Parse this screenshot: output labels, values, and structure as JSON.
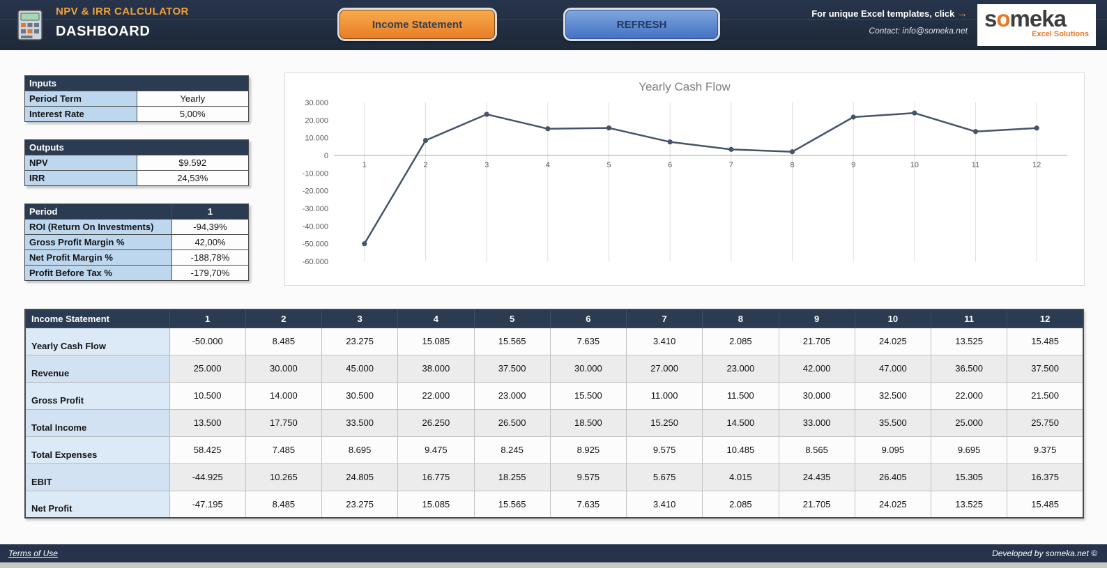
{
  "header": {
    "app_title": "NPV & IRR CALCULATOR",
    "page_title": "DASHBOARD",
    "income_button": "Income Statement",
    "refresh_button": "REFRESH",
    "promo_text": "For unique Excel templates, click",
    "promo_arrow": "→",
    "contact": "Contact: info@someka.net",
    "logo": {
      "pre": "s",
      "o": "o",
      "post": "meka",
      "subtitle": "Excel Solutions"
    }
  },
  "inputs": {
    "title": "Inputs",
    "rows": [
      {
        "label": "Period Term",
        "value": "Yearly"
      },
      {
        "label": "Interest Rate",
        "value": "5,00%"
      }
    ]
  },
  "outputs": {
    "title": "Outputs",
    "rows": [
      {
        "label": "NPV",
        "value": "$9.592"
      },
      {
        "label": "IRR",
        "value": "24,53%"
      }
    ]
  },
  "period": {
    "title": "Period",
    "header_value": "1",
    "rows": [
      {
        "label": "ROI (Return On Investments)",
        "value": "-94,39%"
      },
      {
        "label": "Gross Profit Margin %",
        "value": "42,00%"
      },
      {
        "label": "Net Profit Margin %",
        "value": "-188,78%"
      },
      {
        "label": "Profit Before Tax %",
        "value": "-179,70%"
      }
    ]
  },
  "chart_data": {
    "type": "line",
    "title": "Yearly Cash Flow",
    "x": [
      "1",
      "2",
      "3",
      "4",
      "5",
      "6",
      "7",
      "8",
      "9",
      "10",
      "11",
      "12"
    ],
    "values": [
      -50000,
      8485,
      23275,
      15085,
      15565,
      7635,
      3410,
      2085,
      21705,
      24025,
      13525,
      15485
    ],
    "ylim": [
      -60000,
      30000
    ],
    "ytick_step": 10000,
    "ytick_labels": [
      "30.000",
      "20.000",
      "10.000",
      "0",
      "-10.000",
      "-20.000",
      "-30.000",
      "-40.000",
      "-50.000",
      "-60.000"
    ],
    "grid": "vertical",
    "legend": "none",
    "line_color": "#44546a"
  },
  "income_statement": {
    "title": "Income Statement",
    "columns": [
      "1",
      "2",
      "3",
      "4",
      "5",
      "6",
      "7",
      "8",
      "9",
      "10",
      "11",
      "12"
    ],
    "rows": [
      {
        "label": "Yearly Cash Flow",
        "values": [
          "-50.000",
          "8.485",
          "23.275",
          "15.085",
          "15.565",
          "7.635",
          "3.410",
          "2.085",
          "21.705",
          "24.025",
          "13.525",
          "15.485"
        ]
      },
      {
        "label": "Revenue",
        "values": [
          "25.000",
          "30.000",
          "45.000",
          "38.000",
          "37.500",
          "30.000",
          "27.000",
          "23.000",
          "42.000",
          "47.000",
          "36.500",
          "37.500"
        ]
      },
      {
        "label": "Gross Profit",
        "values": [
          "10.500",
          "14.000",
          "30.500",
          "22.000",
          "23.000",
          "15.500",
          "11.000",
          "11.500",
          "30.000",
          "32.500",
          "22.000",
          "21.500"
        ]
      },
      {
        "label": "Total Income",
        "values": [
          "13.500",
          "17.750",
          "33.500",
          "26.250",
          "26.500",
          "18.500",
          "15.250",
          "14.500",
          "33.000",
          "35.500",
          "25.000",
          "25.750"
        ]
      },
      {
        "label": "Total Expenses",
        "values": [
          "58.425",
          "7.485",
          "8.695",
          "9.475",
          "8.245",
          "8.925",
          "9.575",
          "10.485",
          "8.565",
          "9.095",
          "9.695",
          "9.375"
        ]
      },
      {
        "label": "EBIT",
        "values": [
          "-44.925",
          "10.265",
          "24.805",
          "16.775",
          "18.255",
          "9.575",
          "5.675",
          "4.015",
          "24.435",
          "26.405",
          "15.305",
          "16.375"
        ]
      },
      {
        "label": "Net Profit",
        "values": [
          "-47.195",
          "8.485",
          "23.275",
          "15.085",
          "15.565",
          "7.635",
          "3.410",
          "2.085",
          "21.705",
          "24.025",
          "13.525",
          "15.485"
        ]
      }
    ]
  },
  "footer": {
    "terms": "Terms of Use",
    "developed": "Developed by someka.net ©"
  }
}
